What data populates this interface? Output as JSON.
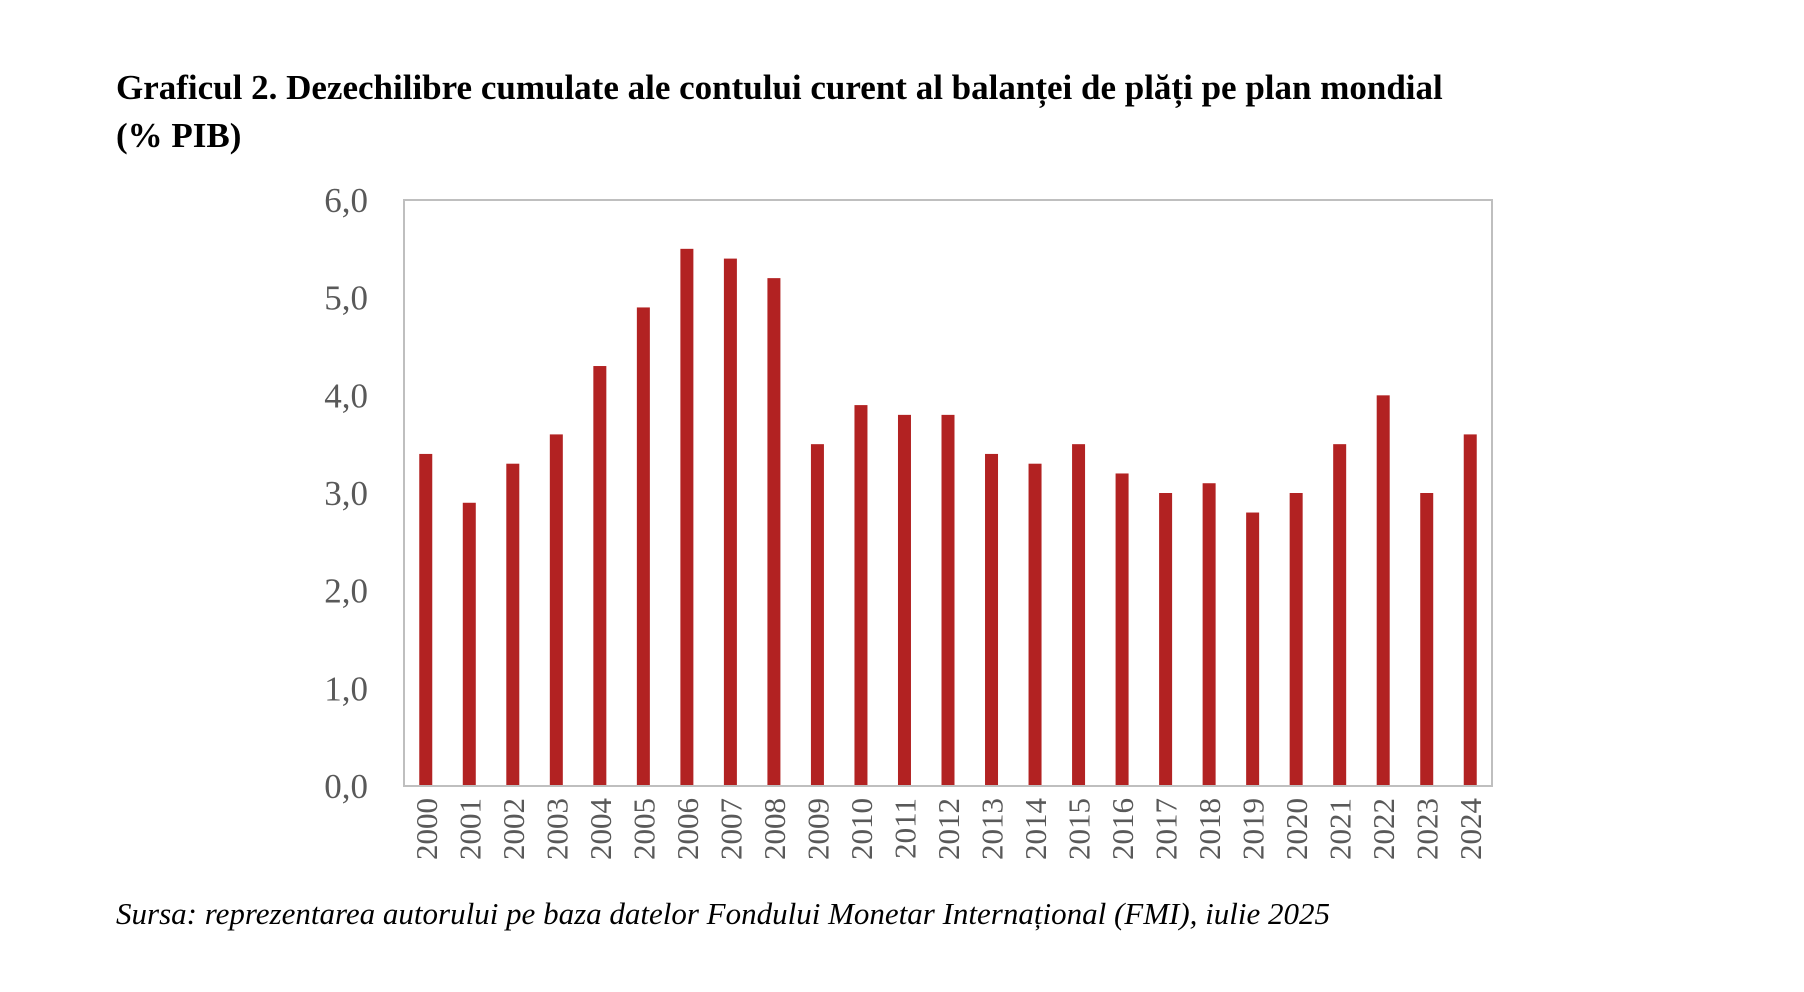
{
  "title_line1": "Graficul 2. Dezechilibre cumulate ale contului curent al balanței de plăți pe plan mondial",
  "title_line2": "(% PIB)",
  "source": "Sursa: reprezentarea autorului pe baza datelor Fondului Monetar Internațional (FMI), iulie 2025",
  "colors": {
    "bar": "#B22222",
    "axis_text": "#595959",
    "frame": "#BFBFBF"
  },
  "chart_data": {
    "type": "bar",
    "categories": [
      "2000",
      "2001",
      "2002",
      "2003",
      "2004",
      "2005",
      "2006",
      "2007",
      "2008",
      "2009",
      "2010",
      "2011",
      "2012",
      "2013",
      "2014",
      "2015",
      "2016",
      "2017",
      "2018",
      "2019",
      "2020",
      "2021",
      "2022",
      "2023",
      "2024"
    ],
    "values": [
      3.4,
      2.9,
      3.3,
      3.6,
      4.3,
      4.9,
      5.5,
      5.4,
      5.2,
      3.5,
      3.9,
      3.8,
      3.8,
      3.4,
      3.3,
      3.5,
      3.2,
      3.0,
      3.1,
      2.8,
      3.0,
      3.5,
      4.0,
      3.0,
      3.6
    ],
    "ylim": [
      0,
      6
    ],
    "yticks": [
      "0,0",
      "1,0",
      "2,0",
      "3,0",
      "4,0",
      "5,0",
      "6,0"
    ],
    "grid": false,
    "legend": "none"
  }
}
